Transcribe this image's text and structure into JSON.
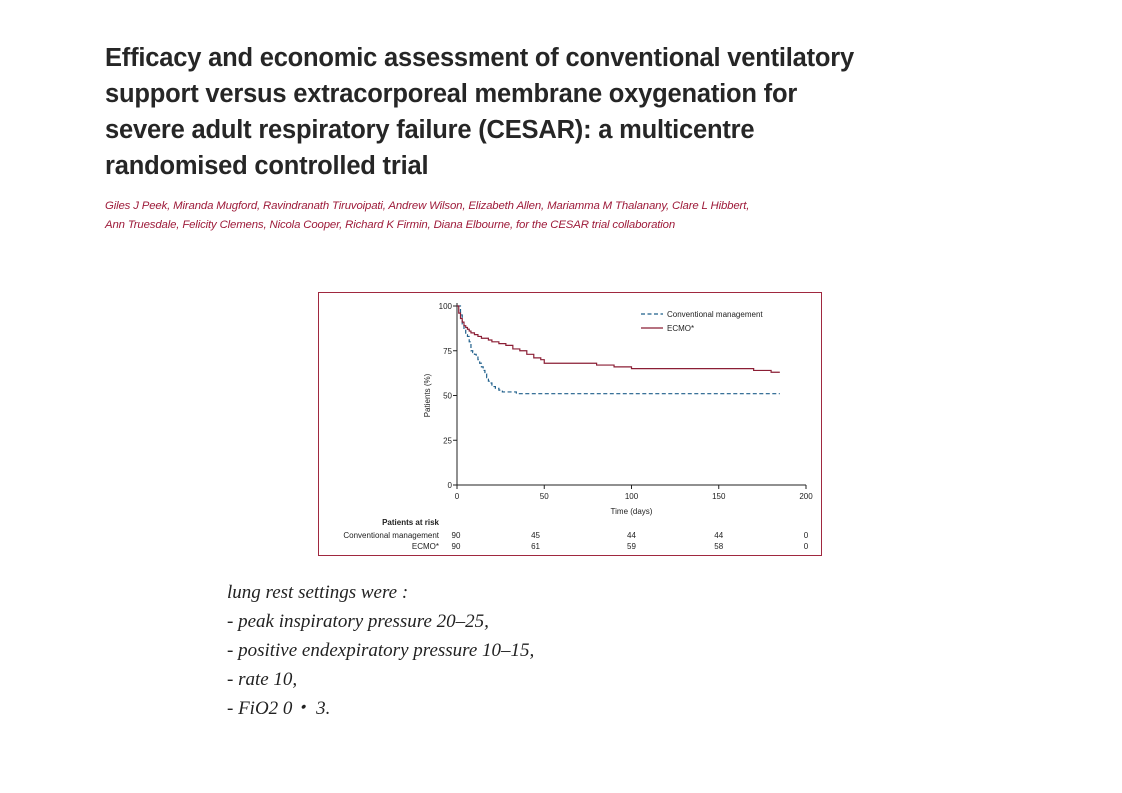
{
  "paper": {
    "title": "Efficacy and economic assessment of conventional ventilatory support versus extracorporeal membrane oxygenation for severe adult respiratory failure (CESAR): a multicentre randomised controlled trial",
    "authors_line1": "Giles J Peek, Miranda Mugford, Ravindranath Tiruvoipati, Andrew Wilson, Elizabeth Allen, Mariamma M Thalanany, Clare L Hibbert,",
    "authors_line2": "Ann Truesdale, Felicity Clemens, Nicola Cooper, Richard K Firmin, Diana Elbourne, for the CESAR trial collaboration"
  },
  "chart_data": {
    "type": "line",
    "xlabel": "Time (days)",
    "ylabel": "Patients (%)",
    "xlim": [
      0,
      200
    ],
    "ylim": [
      0,
      100
    ],
    "x_ticks": [
      0,
      50,
      100,
      150,
      200
    ],
    "y_ticks": [
      0,
      25,
      50,
      75,
      100
    ],
    "grid": false,
    "legend_position": "top-right",
    "series": [
      {
        "name": "Conventional management",
        "color": "#1f5f8b",
        "style": "dashed",
        "x": [
          0,
          2,
          3,
          4,
          5,
          6,
          7,
          8,
          9,
          10,
          11,
          12,
          13,
          14,
          15,
          16,
          17,
          18,
          19,
          20,
          22,
          24,
          26,
          28,
          30,
          32,
          34,
          36,
          40,
          60,
          100,
          150,
          185
        ],
        "y": [
          100,
          95,
          90,
          87,
          84,
          83,
          80,
          75,
          74,
          73,
          72,
          70,
          68,
          66,
          64,
          62,
          60,
          58,
          57,
          55,
          54,
          53,
          52,
          52,
          52,
          52,
          51,
          51,
          51,
          51,
          51,
          51,
          51
        ]
      },
      {
        "name": "ECMO*",
        "color": "#8b1e35",
        "style": "solid",
        "x": [
          0,
          1,
          2,
          3,
          4,
          5,
          6,
          7,
          8,
          10,
          12,
          14,
          16,
          18,
          20,
          24,
          28,
          32,
          36,
          40,
          44,
          48,
          50,
          60,
          70,
          80,
          90,
          100,
          110,
          120,
          140,
          160,
          170,
          180,
          185
        ],
        "y": [
          100,
          96,
          93,
          91,
          89,
          88,
          87,
          86,
          85,
          84,
          83,
          82,
          82,
          81,
          80,
          79,
          78,
          76,
          75,
          73,
          71,
          70,
          68,
          68,
          68,
          67,
          66,
          65,
          65,
          65,
          65,
          65,
          64,
          63,
          63
        ]
      }
    ],
    "at_risk": {
      "header": "Patients at risk",
      "times": [
        0,
        45,
        100,
        150,
        200
      ],
      "rows": [
        {
          "label": "Conventional management",
          "values": [
            "90",
            "45",
            "44",
            "44",
            "0"
          ]
        },
        {
          "label": "ECMO*",
          "values": [
            "90",
            "61",
            "59",
            "58",
            "0"
          ]
        }
      ]
    }
  },
  "notes": {
    "intro": "lung rest settings were :",
    "items": [
      "- peak inspiratory pressure 20–25,",
      "- positive endexpiratory pressure 10–15,",
      "- rate 10,",
      "- FiO2 0・ 3."
    ]
  }
}
